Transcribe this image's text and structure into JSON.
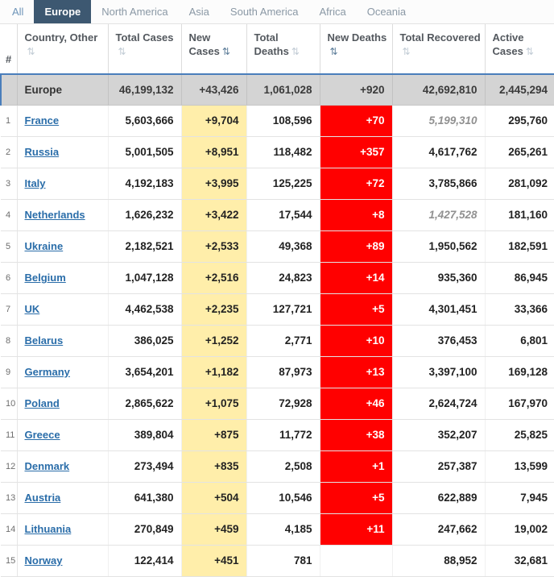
{
  "tabs": [
    {
      "label": "All",
      "selected": false
    },
    {
      "label": "Europe",
      "selected": true
    },
    {
      "label": "North America",
      "selected": false
    },
    {
      "label": "Asia",
      "selected": false
    },
    {
      "label": "South America",
      "selected": false
    },
    {
      "label": "Africa",
      "selected": false
    },
    {
      "label": "Oceania",
      "selected": false
    }
  ],
  "table": {
    "sort_icon": "⇅",
    "headers": [
      {
        "key": "rank",
        "label": "#",
        "icon": false,
        "sorted": false
      },
      {
        "key": "country",
        "label": "Country, Other",
        "icon": true,
        "sorted": false
      },
      {
        "key": "total-cases",
        "label": "Total Cases",
        "icon": true,
        "sorted": false
      },
      {
        "key": "new-cases",
        "label": "New Cases",
        "icon": true,
        "sorted": true
      },
      {
        "key": "total-deaths",
        "label": "Total Deaths",
        "icon": true,
        "sorted": false
      },
      {
        "key": "new-deaths",
        "label": "New Deaths",
        "icon": true,
        "sorted": true
      },
      {
        "key": "total-recovered",
        "label": "Total Recovered",
        "icon": true,
        "sorted": false
      },
      {
        "key": "active-cases",
        "label": "Active Cases",
        "icon": true,
        "sorted": false
      }
    ],
    "summary_row": {
      "rank": "",
      "country": "Europe",
      "total_cases": "46,199,132",
      "new_cases": "+43,426",
      "total_deaths": "1,061,028",
      "new_deaths": "+920",
      "total_recovered": "42,692,810",
      "recovered_estimate": false,
      "active_cases": "2,445,294"
    },
    "rows": [
      {
        "rank": "1",
        "country": "France",
        "total_cases": "5,603,666",
        "new_cases": "+9,704",
        "total_deaths": "108,596",
        "new_deaths": "+70",
        "total_recovered": "5,199,310",
        "recovered_estimate": true,
        "active_cases": "295,760"
      },
      {
        "rank": "2",
        "country": "Russia",
        "total_cases": "5,001,505",
        "new_cases": "+8,951",
        "total_deaths": "118,482",
        "new_deaths": "+357",
        "total_recovered": "4,617,762",
        "recovered_estimate": false,
        "active_cases": "265,261"
      },
      {
        "rank": "3",
        "country": "Italy",
        "total_cases": "4,192,183",
        "new_cases": "+3,995",
        "total_deaths": "125,225",
        "new_deaths": "+72",
        "total_recovered": "3,785,866",
        "recovered_estimate": false,
        "active_cases": "281,092"
      },
      {
        "rank": "4",
        "country": "Netherlands",
        "total_cases": "1,626,232",
        "new_cases": "+3,422",
        "total_deaths": "17,544",
        "new_deaths": "+8",
        "total_recovered": "1,427,528",
        "recovered_estimate": true,
        "active_cases": "181,160"
      },
      {
        "rank": "5",
        "country": "Ukraine",
        "total_cases": "2,182,521",
        "new_cases": "+2,533",
        "total_deaths": "49,368",
        "new_deaths": "+89",
        "total_recovered": "1,950,562",
        "recovered_estimate": false,
        "active_cases": "182,591"
      },
      {
        "rank": "6",
        "country": "Belgium",
        "total_cases": "1,047,128",
        "new_cases": "+2,516",
        "total_deaths": "24,823",
        "new_deaths": "+14",
        "total_recovered": "935,360",
        "recovered_estimate": false,
        "active_cases": "86,945"
      },
      {
        "rank": "7",
        "country": "UK",
        "total_cases": "4,462,538",
        "new_cases": "+2,235",
        "total_deaths": "127,721",
        "new_deaths": "+5",
        "total_recovered": "4,301,451",
        "recovered_estimate": false,
        "active_cases": "33,366"
      },
      {
        "rank": "8",
        "country": "Belarus",
        "total_cases": "386,025",
        "new_cases": "+1,252",
        "total_deaths": "2,771",
        "new_deaths": "+10",
        "total_recovered": "376,453",
        "recovered_estimate": false,
        "active_cases": "6,801"
      },
      {
        "rank": "9",
        "country": "Germany",
        "total_cases": "3,654,201",
        "new_cases": "+1,182",
        "total_deaths": "87,973",
        "new_deaths": "+13",
        "total_recovered": "3,397,100",
        "recovered_estimate": false,
        "active_cases": "169,128"
      },
      {
        "rank": "10",
        "country": "Poland",
        "total_cases": "2,865,622",
        "new_cases": "+1,075",
        "total_deaths": "72,928",
        "new_deaths": "+46",
        "total_recovered": "2,624,724",
        "recovered_estimate": false,
        "active_cases": "167,970"
      },
      {
        "rank": "11",
        "country": "Greece",
        "total_cases": "389,804",
        "new_cases": "+875",
        "total_deaths": "11,772",
        "new_deaths": "+38",
        "total_recovered": "352,207",
        "recovered_estimate": false,
        "active_cases": "25,825"
      },
      {
        "rank": "12",
        "country": "Denmark",
        "total_cases": "273,494",
        "new_cases": "+835",
        "total_deaths": "2,508",
        "new_deaths": "+1",
        "total_recovered": "257,387",
        "recovered_estimate": false,
        "active_cases": "13,599"
      },
      {
        "rank": "13",
        "country": "Austria",
        "total_cases": "641,380",
        "new_cases": "+504",
        "total_deaths": "10,546",
        "new_deaths": "+5",
        "total_recovered": "622,889",
        "recovered_estimate": false,
        "active_cases": "7,945"
      },
      {
        "rank": "14",
        "country": "Lithuania",
        "total_cases": "270,849",
        "new_cases": "+459",
        "total_deaths": "4,185",
        "new_deaths": "+11",
        "total_recovered": "247,662",
        "recovered_estimate": false,
        "active_cases": "19,002"
      },
      {
        "rank": "15",
        "country": "Norway",
        "total_cases": "122,414",
        "new_cases": "+451",
        "total_deaths": "781",
        "new_deaths": "",
        "total_recovered": "88,952",
        "recovered_estimate": false,
        "active_cases": "32,681"
      }
    ]
  },
  "colors": {
    "tab-selected-bg": "#3d5871",
    "tab-text": "#8a98a5",
    "tab-all-text": "#6d94b8",
    "link-blue": "#2a6da9",
    "new-cases-bg": "#FFEEAA",
    "new-deaths-bg": "#FF0000",
    "new-deaths-text": "#FFFFFF",
    "summary-row-bg": "#d4d4d4",
    "summary-accent-blue": "#4a7ebb",
    "header-text": "#53585e",
    "estimate-text": "#909090"
  }
}
